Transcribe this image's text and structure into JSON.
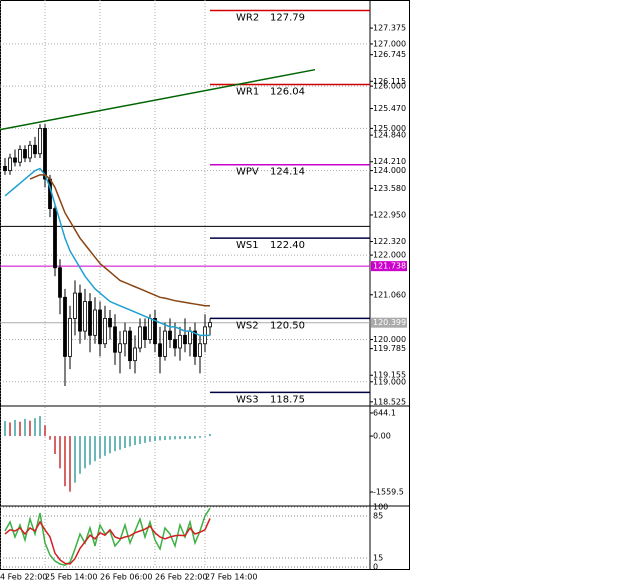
{
  "chart_data": [
    {
      "type": "candlestick",
      "ylim": [
        118.45,
        128.04
      ],
      "xlim": [
        -1,
        73
      ],
      "yticks": [
        127.375,
        {
          "value": 127,
          "label": "127.000"
        },
        126.745,
        126.115,
        {
          "value": 126,
          "label": "126.000"
        },
        {
          "value": 125.47,
          "label": "125.470"
        },
        {
          "value": 125,
          "label": "125.000"
        },
        {
          "value": 124.84,
          "label": "124.840"
        },
        {
          "value": 124.21,
          "label": "124.210"
        },
        {
          "value": 124,
          "label": "124.000"
        },
        {
          "value": 123.58,
          "label": "123.580"
        },
        {
          "value": 122.95,
          "label": "122.950"
        },
        {
          "value": 122.32,
          "label": "122.320"
        },
        {
          "value": 122,
          "label": "122.000"
        },
        {
          "value": 121.06,
          "label": "121.060"
        },
        {
          "value": 120,
          "label": "120.000"
        },
        119.785,
        119.155,
        {
          "value": 119,
          "label": "119.000"
        },
        118.525
      ],
      "xticks": [
        {
          "value": -1,
          "label": "4 Feb 22:00"
        },
        {
          "value": 8,
          "label": "25 Feb 14:00"
        },
        {
          "value": 19,
          "label": "26 Feb 06:00"
        },
        {
          "value": 30,
          "label": "26 Feb 22:00"
        },
        {
          "value": 40,
          "label": "27 Feb 14:00"
        }
      ],
      "candles": [
        [
          124.1,
          124.3,
          123.9,
          124.0
        ],
        [
          124.0,
          124.4,
          123.9,
          124.3
        ],
        [
          124.3,
          124.5,
          124.1,
          124.2
        ],
        [
          124.2,
          124.6,
          124.1,
          124.5
        ],
        [
          124.5,
          124.6,
          124.2,
          124.3
        ],
        [
          124.3,
          124.7,
          124.2,
          124.6
        ],
        [
          124.6,
          124.8,
          124.3,
          124.4
        ],
        [
          124.4,
          125.1,
          124.3,
          125.0
        ],
        [
          125.0,
          125.1,
          123.6,
          123.8
        ],
        [
          123.8,
          123.9,
          122.9,
          123.1
        ],
        [
          123.1,
          123.2,
          121.5,
          121.7
        ],
        [
          121.7,
          121.9,
          120.6,
          121.0
        ],
        [
          121.0,
          121.2,
          118.9,
          119.6
        ],
        [
          119.6,
          120.8,
          119.3,
          120.5
        ],
        [
          120.5,
          121.4,
          120.1,
          121.1
        ],
        [
          121.1,
          121.3,
          119.9,
          120.2
        ],
        [
          120.2,
          121.2,
          120.0,
          120.9
        ],
        [
          120.9,
          121.1,
          119.7,
          120.1
        ],
        [
          120.1,
          121.0,
          119.9,
          120.7
        ],
        [
          120.7,
          120.9,
          119.6,
          119.9
        ],
        [
          119.9,
          120.8,
          119.8,
          120.5
        ],
        [
          120.5,
          120.7,
          120.0,
          120.3
        ],
        [
          120.3,
          120.6,
          119.4,
          119.7
        ],
        [
          119.7,
          120.2,
          119.2,
          119.9
        ],
        [
          119.9,
          120.4,
          119.6,
          120.2
        ],
        [
          120.2,
          120.3,
          119.3,
          119.5
        ],
        [
          119.5,
          120.1,
          119.2,
          119.8
        ],
        [
          119.8,
          120.5,
          119.7,
          120.3
        ],
        [
          120.3,
          120.5,
          119.8,
          120.0
        ],
        [
          120.0,
          120.6,
          119.9,
          120.5
        ],
        [
          120.5,
          120.7,
          119.7,
          119.9
        ],
        [
          119.9,
          120.3,
          119.2,
          119.6
        ],
        [
          119.6,
          120.4,
          119.5,
          120.2
        ],
        [
          120.2,
          120.5,
          119.8,
          120.0
        ],
        [
          120.0,
          120.4,
          119.6,
          119.8
        ],
        [
          119.8,
          120.3,
          119.5,
          120.1
        ],
        [
          120.1,
          120.5,
          119.7,
          119.9
        ],
        [
          119.9,
          120.3,
          119.6,
          120.2
        ],
        [
          120.2,
          120.4,
          119.4,
          119.6
        ],
        [
          119.6,
          120.1,
          119.2,
          119.9
        ],
        [
          119.9,
          120.6,
          119.7,
          120.3
        ],
        [
          120.3,
          120.5,
          120.1,
          120.4
        ]
      ],
      "series": [
        {
          "color": "#1ea0d0",
          "values": [
            123.4,
            123.5,
            123.6,
            123.7,
            123.8,
            123.9,
            124.0,
            124.05,
            123.9,
            123.6,
            123.2,
            122.8,
            122.4,
            122.1,
            121.9,
            121.7,
            121.5,
            121.35,
            121.2,
            121.1,
            121.0,
            120.9,
            120.85,
            120.8,
            120.75,
            120.7,
            120.65,
            120.6,
            120.55,
            120.5,
            120.45,
            120.4,
            120.35,
            120.3,
            120.3,
            120.25,
            120.2,
            120.2,
            120.15,
            120.1,
            120.1,
            120.1
          ]
        },
        {
          "color": "#8b4513",
          "values": [
            null,
            null,
            null,
            null,
            null,
            123.8,
            123.85,
            123.9,
            123.9,
            123.8,
            123.6,
            123.3,
            123.0,
            122.8,
            122.6,
            122.4,
            122.25,
            122.1,
            121.95,
            121.8,
            121.7,
            121.6,
            121.5,
            121.4,
            121.35,
            121.3,
            121.25,
            121.2,
            121.15,
            121.1,
            121.05,
            121.0,
            120.98,
            120.95,
            120.92,
            120.9,
            120.88,
            120.86,
            120.84,
            120.82,
            120.8,
            120.8
          ]
        }
      ],
      "trendline": {
        "x": [
          -1,
          62
        ],
        "y": [
          124.97,
          126.39
        ],
        "color": "#006400"
      },
      "hlines": [
        {
          "value": 122.68,
          "color": "#000000"
        },
        {
          "value": 121.738,
          "color": "#cc00cc",
          "label": "121.738"
        },
        {
          "value": 120.399,
          "color": "#aaaaaa",
          "label": "120.399"
        }
      ],
      "levels": [
        {
          "name": "WR2",
          "value": 127.79,
          "label": "127.79",
          "color": "#d00000"
        },
        {
          "name": "WR1",
          "value": 126.04,
          "label": "126.04",
          "color": "#d00000"
        },
        {
          "name": "WPV",
          "value": 124.14,
          "label": "124.14",
          "color": "#cc00cc"
        },
        {
          "name": "WS1",
          "value": 122.4,
          "label": "122.40",
          "color": "#000040"
        },
        {
          "name": "WS2",
          "value": 120.5,
          "label": "120.50",
          "color": "#000040"
        },
        {
          "name": "WS3",
          "value": 118.75,
          "label": "118.75",
          "color": "#000040"
        }
      ]
    },
    {
      "type": "bar",
      "ylim": [
        -1922,
        811
      ],
      "yticks": [
        644.1,
        {
          "value": 0,
          "label": "0.00"
        },
        -1559.5
      ],
      "color_up": "#3a9fa0",
      "color_down": "#c83030",
      "values": [
        420,
        380,
        450,
        400,
        480,
        430,
        500,
        560,
        300,
        -100,
        -500,
        -900,
        -1400,
        -1550,
        -1300,
        -1050,
        -900,
        -800,
        -700,
        -620,
        -550,
        -480,
        -420,
        -380,
        -330,
        -290,
        -250,
        -220,
        -190,
        -160,
        -140,
        -120,
        -110,
        -100,
        -90,
        -85,
        -80,
        -75,
        -70,
        -50,
        -20,
        60
      ]
    },
    {
      "type": "line",
      "ylim": [
        0,
        100
      ],
      "yticks": [
        100,
        85,
        15,
        0
      ],
      "series": [
        {
          "color": "#3cb043",
          "values": [
            60,
            75,
            50,
            70,
            45,
            80,
            55,
            90,
            40,
            20,
            10,
            5,
            3,
            8,
            30,
            55,
            40,
            65,
            35,
            70,
            55,
            60,
            35,
            45,
            70,
            40,
            60,
            80,
            50,
            75,
            45,
            30,
            65,
            55,
            35,
            70,
            50,
            75,
            40,
            60,
            85,
            98
          ]
        },
        {
          "color": "#d02020",
          "values": [
            55,
            62,
            60,
            65,
            55,
            65,
            60,
            75,
            62,
            50,
            23,
            12,
            6,
            5,
            14,
            31,
            42,
            53,
            47,
            57,
            53,
            62,
            50,
            47,
            50,
            52,
            57,
            60,
            63,
            68,
            57,
            50,
            47,
            50,
            52,
            53,
            52,
            65,
            55,
            58,
            62,
            81
          ]
        }
      ]
    }
  ]
}
